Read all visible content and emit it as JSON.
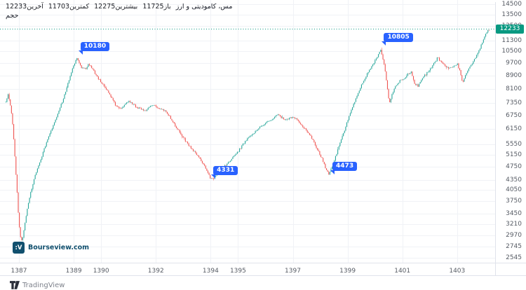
{
  "legend": {
    "symbol_name": "مس، کامودیتی و ارز",
    "volume_label": "حجم",
    "fields": [
      {
        "label": "آخرین",
        "value": "12233",
        "color": "#26a69a"
      },
      {
        "label": "کمترین",
        "value": "11703",
        "color": "#ef5350"
      },
      {
        "label": "بیشترین",
        "value": "12275",
        "color": "#26a69a"
      },
      {
        "label": "باز",
        "value": "11725",
        "color": "#26a69a"
      }
    ]
  },
  "chart_data": {
    "type": "candlestick",
    "title": "مس، کامودیتی و ارز",
    "y_scale": "log",
    "grid": true,
    "legend_position": "top-left",
    "x_ticks": [
      1387,
      1389,
      1390,
      1392,
      1394,
      1395,
      1397,
      1399,
      1401,
      1403
    ],
    "y_ticks": [
      14500,
      13500,
      12500,
      11300,
      10500,
      9700,
      8900,
      8100,
      7350,
      6750,
      6150,
      5550,
      5150,
      4750,
      4350,
      4050,
      3750,
      3450,
      3210,
      2970,
      2745,
      2545
    ],
    "x_range": [
      1386.5,
      1404.3
    ],
    "y_range": [
      2545,
      14500
    ],
    "ohlc_latest": {
      "open": 11725,
      "high": 12275,
      "low": 11703,
      "close": 12233
    },
    "last_price": 12233,
    "annotations": [
      {
        "label": "10180",
        "t": 1389.12,
        "v": 10180
      },
      {
        "label": "4331",
        "t": 1393.97,
        "v": 4331
      },
      {
        "label": "4473",
        "t": 1398.32,
        "v": 4473
      },
      {
        "label": "10805",
        "t": 1400.2,
        "v": 10805
      }
    ],
    "price_path": [
      [
        1386.5,
        7300
      ],
      [
        1386.6,
        7800
      ],
      [
        1386.7,
        7200
      ],
      [
        1386.78,
        6200
      ],
      [
        1386.85,
        5100
      ],
      [
        1386.93,
        4000
      ],
      [
        1387.0,
        3200
      ],
      [
        1387.08,
        2820
      ],
      [
        1387.15,
        2950
      ],
      [
        1387.25,
        3350
      ],
      [
        1387.4,
        3900
      ],
      [
        1387.55,
        4350
      ],
      [
        1387.7,
        4750
      ],
      [
        1387.85,
        5150
      ],
      [
        1388.0,
        5600
      ],
      [
        1388.15,
        6000
      ],
      [
        1388.3,
        6450
      ],
      [
        1388.45,
        6950
      ],
      [
        1388.6,
        7500
      ],
      [
        1388.75,
        8200
      ],
      [
        1388.9,
        9000
      ],
      [
        1389.0,
        9500
      ],
      [
        1389.12,
        10020
      ],
      [
        1389.2,
        9700
      ],
      [
        1389.3,
        9350
      ],
      [
        1389.45,
        9300
      ],
      [
        1389.55,
        9620
      ],
      [
        1389.65,
        9400
      ],
      [
        1389.8,
        8950
      ],
      [
        1389.95,
        8600
      ],
      [
        1390.1,
        8300
      ],
      [
        1390.25,
        7950
      ],
      [
        1390.4,
        7600
      ],
      [
        1390.55,
        7200
      ],
      [
        1390.7,
        7050
      ],
      [
        1390.85,
        7250
      ],
      [
        1391.0,
        7480
      ],
      [
        1391.15,
        7350
      ],
      [
        1391.3,
        7150
      ],
      [
        1391.45,
        7050
      ],
      [
        1391.6,
        6950
      ],
      [
        1391.75,
        7150
      ],
      [
        1391.9,
        7300
      ],
      [
        1392.05,
        7150
      ],
      [
        1392.2,
        7050
      ],
      [
        1392.35,
        6950
      ],
      [
        1392.5,
        6700
      ],
      [
        1392.65,
        6400
      ],
      [
        1392.8,
        6150
      ],
      [
        1392.95,
        5900
      ],
      [
        1393.1,
        5650
      ],
      [
        1393.25,
        5450
      ],
      [
        1393.4,
        5280
      ],
      [
        1393.55,
        5080
      ],
      [
        1393.7,
        4900
      ],
      [
        1393.85,
        4650
      ],
      [
        1393.98,
        4400
      ],
      [
        1394.08,
        4360
      ],
      [
        1394.2,
        4480
      ],
      [
        1394.35,
        4640
      ],
      [
        1394.5,
        4760
      ],
      [
        1394.65,
        4900
      ],
      [
        1394.8,
        5050
      ],
      [
        1394.95,
        5200
      ],
      [
        1395.1,
        5420
      ],
      [
        1395.25,
        5650
      ],
      [
        1395.4,
        5820
      ],
      [
        1395.55,
        5980
      ],
      [
        1395.7,
        6130
      ],
      [
        1395.85,
        6280
      ],
      [
        1396.0,
        6420
      ],
      [
        1396.15,
        6530
      ],
      [
        1396.3,
        6650
      ],
      [
        1396.45,
        6800
      ],
      [
        1396.6,
        6650
      ],
      [
        1396.75,
        6550
      ],
      [
        1396.9,
        6680
      ],
      [
        1397.05,
        6650
      ],
      [
        1397.2,
        6500
      ],
      [
        1397.35,
        6300
      ],
      [
        1397.5,
        6100
      ],
      [
        1397.65,
        5850
      ],
      [
        1397.8,
        5550
      ],
      [
        1397.95,
        5250
      ],
      [
        1398.1,
        4950
      ],
      [
        1398.22,
        4650
      ],
      [
        1398.32,
        4520
      ],
      [
        1398.45,
        4800
      ],
      [
        1398.6,
        5200
      ],
      [
        1398.75,
        5650
      ],
      [
        1398.9,
        6150
      ],
      [
        1399.05,
        6700
      ],
      [
        1399.2,
        7200
      ],
      [
        1399.35,
        7750
      ],
      [
        1399.5,
        8300
      ],
      [
        1399.65,
        8800
      ],
      [
        1399.8,
        9200
      ],
      [
        1399.95,
        9650
      ],
      [
        1400.1,
        10150
      ],
      [
        1400.2,
        10600
      ],
      [
        1400.3,
        9900
      ],
      [
        1400.42,
        8600
      ],
      [
        1400.52,
        7300
      ],
      [
        1400.62,
        7800
      ],
      [
        1400.75,
        8300
      ],
      [
        1400.9,
        8550
      ],
      [
        1401.05,
        8700
      ],
      [
        1401.2,
        8950
      ],
      [
        1401.32,
        9100
      ],
      [
        1401.45,
        8400
      ],
      [
        1401.58,
        8250
      ],
      [
        1401.7,
        8650
      ],
      [
        1401.85,
        8950
      ],
      [
        1402.0,
        9250
      ],
      [
        1402.15,
        9650
      ],
      [
        1402.28,
        10050
      ],
      [
        1402.4,
        9800
      ],
      [
        1402.55,
        9500
      ],
      [
        1402.7,
        9350
      ],
      [
        1402.85,
        9450
      ],
      [
        1403.0,
        9650
      ],
      [
        1403.1,
        9200
      ],
      [
        1403.2,
        8450
      ],
      [
        1403.32,
        8950
      ],
      [
        1403.45,
        9350
      ],
      [
        1403.6,
        9800
      ],
      [
        1403.75,
        10300
      ],
      [
        1403.87,
        10900
      ],
      [
        1403.97,
        11500
      ],
      [
        1404.08,
        12000
      ],
      [
        1404.18,
        12233
      ]
    ],
    "colors": {
      "up": "#26a69a",
      "down": "#ef5350",
      "annotation": "#2962ff",
      "last_price": "#089981",
      "grid": "#f0f2f6"
    }
  },
  "footer": {
    "bourseview_label": "Bourseview.com",
    "bourseview_logo_glyph": ":V",
    "bourseview_color": "#11506e",
    "tradingview_label": "TradingView"
  }
}
